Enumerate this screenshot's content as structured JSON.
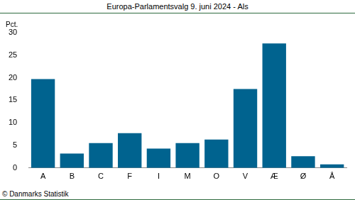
{
  "chart_data": {
    "type": "bar",
    "title": "Europa-Parlamentsvalg 9. juni 2024 - Als",
    "y_label": "Pct.",
    "source": "© Danmarks Statistik",
    "categories": [
      "A",
      "B",
      "C",
      "F",
      "I",
      "M",
      "O",
      "V",
      "Æ",
      "Ø",
      "Å"
    ],
    "values": [
      19.7,
      3.2,
      5.5,
      7.7,
      4.3,
      5.5,
      6.3,
      17.5,
      27.6,
      2.6,
      0.8
    ],
    "color": "#00638f",
    "ylim": [
      0,
      30
    ],
    "yticks": [
      0,
      5,
      10,
      15,
      20,
      25,
      30
    ],
    "grid": false
  }
}
